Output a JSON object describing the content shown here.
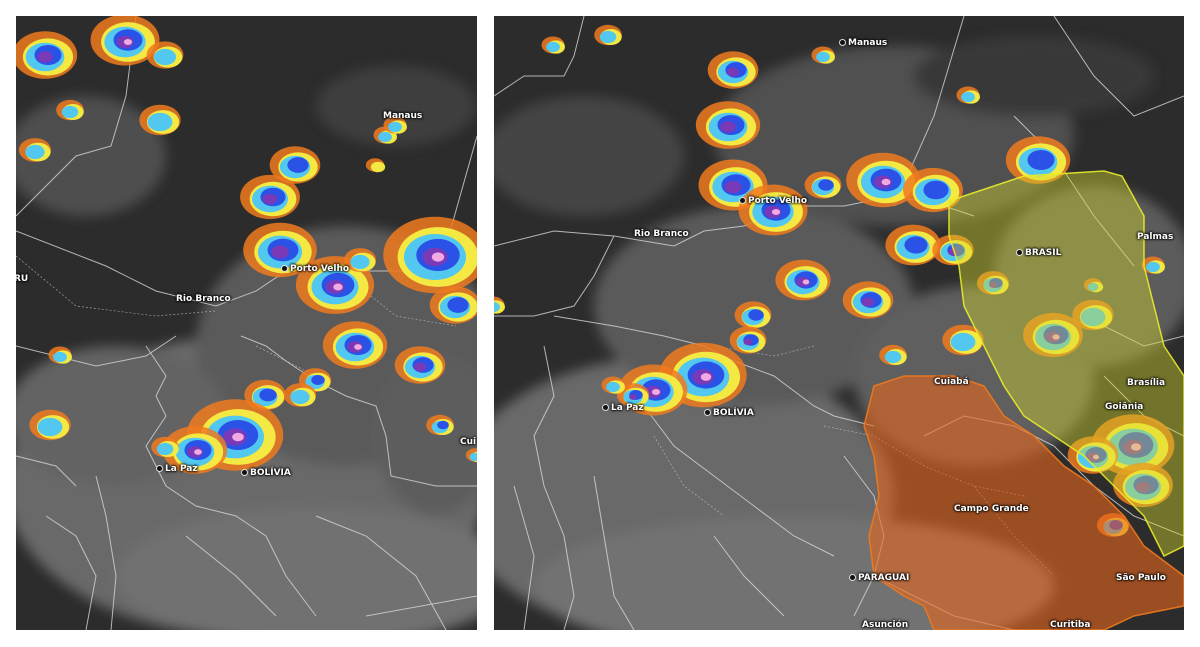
{
  "left_map": {
    "labels": {
      "manaus": "Manaus",
      "porto_velho": "Porto Velho",
      "rio_branco": "Rio Branco",
      "la_paz": "La Paz",
      "bolivia": "BOLÍVIA",
      "ru": "RU",
      "cui": "Cui"
    }
  },
  "right_map": {
    "labels": {
      "manaus": "Manaus",
      "porto_velho": "Porto Velho",
      "rio_branco": "Rio Branco",
      "la_paz": "La Paz",
      "bolivia": "BOLÍVIA",
      "brasil": "BRASIL",
      "palmas": "Palmas",
      "brasilia": "Brasília",
      "goiania": "Goiânia",
      "cuiaba": "Cuiabá",
      "campo_grande": "Campo Grande",
      "paraguai": "PARAGUAI",
      "sao_paulo": "São Paulo",
      "curitiba": "Curitiba",
      "asuncion": "Asunción"
    },
    "warning_areas": [
      {
        "name": "yellow-alert-area",
        "color": "#d6d92a"
      },
      {
        "name": "orange-alert-area",
        "color": "#e8661e"
      }
    ]
  },
  "colors": {
    "background": "#2c2c2c",
    "cloud_gray": "#8a8a8a",
    "cloud_orange": "#f07a1e",
    "cloud_yellow": "#f6ee45",
    "cloud_cyan": "#52c8f0",
    "cloud_blue": "#2a52e6",
    "cloud_purple": "#7a3ab8",
    "cloud_pink": "#f2a8e0"
  }
}
